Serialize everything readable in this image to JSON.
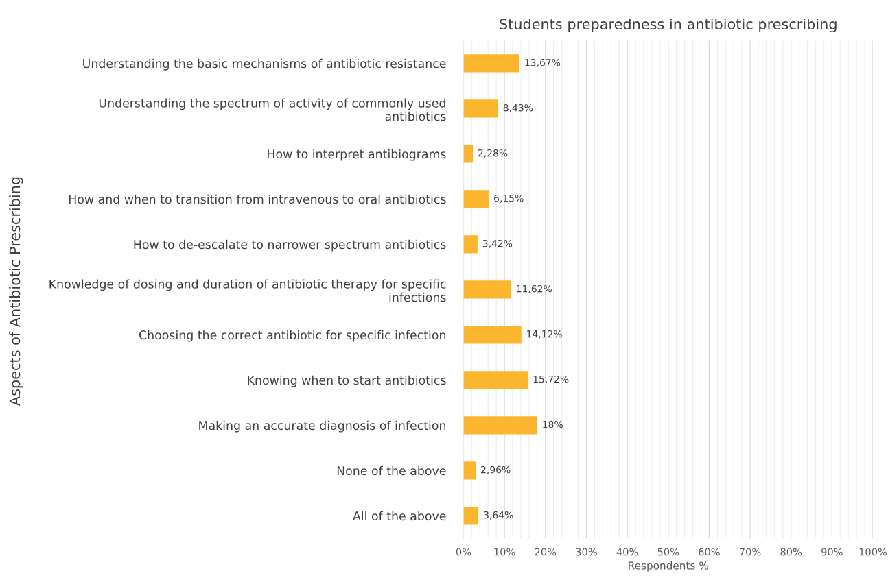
{
  "chart_data": {
    "type": "bar",
    "orientation": "horizontal",
    "title": "Students preparedness in antibiotic prescribing",
    "xlabel": "Respondents %",
    "ylabel": "Aspects of Antibiotic Prescribing",
    "categories": [
      "Understanding the basic mechanisms of antibiotic resistance",
      "Understanding the spectrum of activity of commonly used\nantibiotics",
      "How to interpret antibiograms",
      "How and when to transition from intravenous to oral antibiotics",
      "How to de-escalate to narrower spectrum antibiotics",
      "Knowledge of dosing and duration of antibiotic therapy for specific\ninfections",
      "Choosing the correct antibiotic for specific infection",
      "Knowing when to start antibiotics",
      "Making an accurate diagnosis of infection",
      "None of the above",
      "All of the above"
    ],
    "values": [
      13.67,
      8.43,
      2.28,
      6.15,
      3.42,
      11.62,
      14.12,
      15.72,
      18,
      2.96,
      3.64
    ],
    "value_labels": [
      "13,67%",
      "8,43%",
      "2,28%",
      "6,15%",
      "3,42%",
      "11,62%",
      "14,12%",
      "15,72%",
      "18%",
      "2,96%",
      "3,64%"
    ],
    "color": "#fbb52f",
    "xlim": [
      0,
      100
    ],
    "xticks": [
      {
        "value": 0,
        "label": "0%"
      },
      {
        "value": 2,
        "label": null
      },
      {
        "value": 4,
        "label": null
      },
      {
        "value": 6,
        "label": null
      },
      {
        "value": 8,
        "label": null
      },
      {
        "value": 10,
        "label": "10%"
      },
      {
        "value": 12,
        "label": null
      },
      {
        "value": 14,
        "label": null
      },
      {
        "value": 16,
        "label": null
      },
      {
        "value": 18,
        "label": null
      },
      {
        "value": 20,
        "label": "20%"
      },
      {
        "value": 22,
        "label": null
      },
      {
        "value": 24,
        "label": null
      },
      {
        "value": 26,
        "label": null
      },
      {
        "value": 28,
        "label": null
      },
      {
        "value": 30,
        "label": "30%"
      },
      {
        "value": 32,
        "label": null
      },
      {
        "value": 34,
        "label": null
      },
      {
        "value": 36,
        "label": null
      },
      {
        "value": 38,
        "label": null
      },
      {
        "value": 40,
        "label": "40%"
      },
      {
        "value": 42,
        "label": null
      },
      {
        "value": 44,
        "label": null
      },
      {
        "value": 46,
        "label": null
      },
      {
        "value": 48,
        "label": null
      },
      {
        "value": 50,
        "label": "50%"
      },
      {
        "value": 52,
        "label": null
      },
      {
        "value": 54,
        "label": null
      },
      {
        "value": 56,
        "label": null
      },
      {
        "value": 58,
        "label": null
      },
      {
        "value": 60,
        "label": "60%"
      },
      {
        "value": 62,
        "label": null
      },
      {
        "value": 64,
        "label": null
      },
      {
        "value": 66,
        "label": null
      },
      {
        "value": 68,
        "label": null
      },
      {
        "value": 70,
        "label": "70%"
      },
      {
        "value": 72,
        "label": null
      },
      {
        "value": 74,
        "label": null
      },
      {
        "value": 76,
        "label": null
      },
      {
        "value": 78,
        "label": null
      },
      {
        "value": 80,
        "label": "80%"
      },
      {
        "value": 82,
        "label": null
      },
      {
        "value": 84,
        "label": null
      },
      {
        "value": 86,
        "label": null
      },
      {
        "value": 88,
        "label": null
      },
      {
        "value": 90,
        "label": "90%"
      },
      {
        "value": 92,
        "label": null
      },
      {
        "value": 94,
        "label": null
      },
      {
        "value": 96,
        "label": null
      },
      {
        "value": 98,
        "label": null
      },
      {
        "value": 100,
        "label": "100%"
      }
    ],
    "grid": "x",
    "legend": false
  }
}
